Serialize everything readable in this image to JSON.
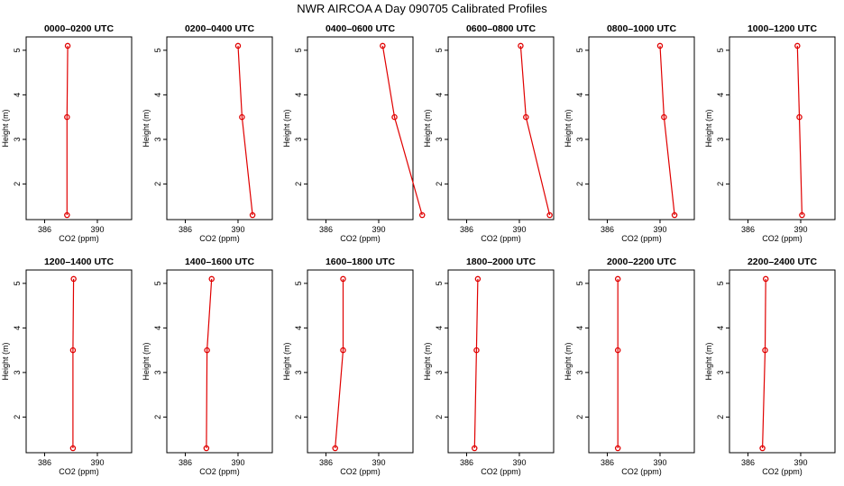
{
  "figure": {
    "title": "NWR AIRCOA A  Day 090705  Calibrated Profiles"
  },
  "colors": {
    "line": "#e00000",
    "axis": "#000000"
  },
  "chart_data": [
    {
      "type": "line",
      "title": "0000–0200 UTC",
      "xlabel": "CO2 (ppm)",
      "ylabel": "Height (m)",
      "xlim": [
        384.6,
        392.6
      ],
      "ylim": [
        1.2,
        5.3
      ],
      "xticks": [
        386,
        390
      ],
      "yticks": [
        2,
        3,
        4,
        5
      ],
      "series": [
        {
          "name": "profile",
          "x": [
            387.7,
            387.7,
            387.75
          ],
          "y": [
            1.3,
            3.5,
            5.1
          ]
        }
      ]
    },
    {
      "type": "line",
      "title": "0200–0400 UTC",
      "xlabel": "CO2 (ppm)",
      "ylabel": "Height (m)",
      "xlim": [
        384.6,
        392.6
      ],
      "ylim": [
        1.2,
        5.3
      ],
      "xticks": [
        386,
        390
      ],
      "yticks": [
        2,
        3,
        4,
        5
      ],
      "series": [
        {
          "name": "profile",
          "x": [
            391.1,
            390.3,
            390.0
          ],
          "y": [
            1.3,
            3.5,
            5.1
          ]
        }
      ]
    },
    {
      "type": "line",
      "title": "0400–0600 UTC",
      "xlabel": "CO2 (ppm)",
      "ylabel": "Height (m)",
      "xlim": [
        384.6,
        392.6
      ],
      "ylim": [
        1.2,
        5.3
      ],
      "xticks": [
        386,
        390
      ],
      "yticks": [
        2,
        3,
        4,
        5
      ],
      "series": [
        {
          "name": "profile",
          "x": [
            393.3,
            391.2,
            390.3
          ],
          "y": [
            1.3,
            3.5,
            5.1
          ]
        }
      ]
    },
    {
      "type": "line",
      "title": "0600–0800 UTC",
      "xlabel": "CO2 (ppm)",
      "ylabel": "Height (m)",
      "xlim": [
        384.6,
        392.6
      ],
      "ylim": [
        1.2,
        5.3
      ],
      "xticks": [
        386,
        390
      ],
      "yticks": [
        2,
        3,
        4,
        5
      ],
      "series": [
        {
          "name": "profile",
          "x": [
            392.3,
            390.5,
            390.1
          ],
          "y": [
            1.3,
            3.5,
            5.1
          ]
        }
      ]
    },
    {
      "type": "line",
      "title": "0800–1000 UTC",
      "xlabel": "CO2 (ppm)",
      "ylabel": "Height (m)",
      "xlim": [
        384.6,
        392.6
      ],
      "ylim": [
        1.2,
        5.3
      ],
      "xticks": [
        386,
        390
      ],
      "yticks": [
        2,
        3,
        4,
        5
      ],
      "series": [
        {
          "name": "profile",
          "x": [
            391.1,
            390.3,
            390.0
          ],
          "y": [
            1.3,
            3.5,
            5.1
          ]
        }
      ]
    },
    {
      "type": "line",
      "title": "1000–1200 UTC",
      "xlabel": "CO2 (ppm)",
      "ylabel": "Height (m)",
      "xlim": [
        384.6,
        392.6
      ],
      "ylim": [
        1.2,
        5.3
      ],
      "xticks": [
        386,
        390
      ],
      "yticks": [
        2,
        3,
        4,
        5
      ],
      "series": [
        {
          "name": "profile",
          "x": [
            390.1,
            389.9,
            389.75
          ],
          "y": [
            1.3,
            3.5,
            5.1
          ]
        }
      ]
    },
    {
      "type": "line",
      "title": "1200–1400 UTC",
      "xlabel": "CO2 (ppm)",
      "ylabel": "Height (m)",
      "xlim": [
        384.6,
        392.6
      ],
      "ylim": [
        1.2,
        5.3
      ],
      "xticks": [
        386,
        390
      ],
      "yticks": [
        2,
        3,
        4,
        5
      ],
      "series": [
        {
          "name": "profile",
          "x": [
            388.15,
            388.15,
            388.2
          ],
          "y": [
            1.3,
            3.5,
            5.1
          ]
        }
      ]
    },
    {
      "type": "line",
      "title": "1400–1600 UTC",
      "xlabel": "CO2 (ppm)",
      "ylabel": "Height (m)",
      "xlim": [
        384.6,
        392.6
      ],
      "ylim": [
        1.2,
        5.3
      ],
      "xticks": [
        386,
        390
      ],
      "yticks": [
        2,
        3,
        4,
        5
      ],
      "series": [
        {
          "name": "profile",
          "x": [
            387.6,
            387.65,
            388.0
          ],
          "y": [
            1.3,
            3.5,
            5.1
          ]
        }
      ]
    },
    {
      "type": "line",
      "title": "1600–1800 UTC",
      "xlabel": "CO2 (ppm)",
      "ylabel": "Height (m)",
      "xlim": [
        384.6,
        392.6
      ],
      "ylim": [
        1.2,
        5.3
      ],
      "xticks": [
        386,
        390
      ],
      "yticks": [
        2,
        3,
        4,
        5
      ],
      "series": [
        {
          "name": "profile",
          "x": [
            386.7,
            387.3,
            387.3
          ],
          "y": [
            1.3,
            3.5,
            5.1
          ]
        }
      ]
    },
    {
      "type": "line",
      "title": "1800–2000 UTC",
      "xlabel": "CO2 (ppm)",
      "ylabel": "Height (m)",
      "xlim": [
        384.6,
        392.6
      ],
      "ylim": [
        1.2,
        5.3
      ],
      "xticks": [
        386,
        390
      ],
      "yticks": [
        2,
        3,
        4,
        5
      ],
      "series": [
        {
          "name": "profile",
          "x": [
            386.6,
            386.75,
            386.85
          ],
          "y": [
            1.3,
            3.5,
            5.1
          ]
        }
      ]
    },
    {
      "type": "line",
      "title": "2000–2200 UTC",
      "xlabel": "CO2 (ppm)",
      "ylabel": "Height (m)",
      "xlim": [
        384.6,
        392.6
      ],
      "ylim": [
        1.2,
        5.3
      ],
      "xticks": [
        386,
        390
      ],
      "yticks": [
        2,
        3,
        4,
        5
      ],
      "series": [
        {
          "name": "profile",
          "x": [
            386.8,
            386.8,
            386.8
          ],
          "y": [
            1.3,
            3.5,
            5.1
          ]
        }
      ]
    },
    {
      "type": "line",
      "title": "2200–2400 UTC",
      "xlabel": "CO2 (ppm)",
      "ylabel": "Height (m)",
      "xlim": [
        384.6,
        392.6
      ],
      "ylim": [
        1.2,
        5.3
      ],
      "xticks": [
        386,
        390
      ],
      "yticks": [
        2,
        3,
        4,
        5
      ],
      "series": [
        {
          "name": "profile",
          "x": [
            387.1,
            387.3,
            387.35
          ],
          "y": [
            1.3,
            3.5,
            5.1
          ]
        }
      ]
    }
  ]
}
